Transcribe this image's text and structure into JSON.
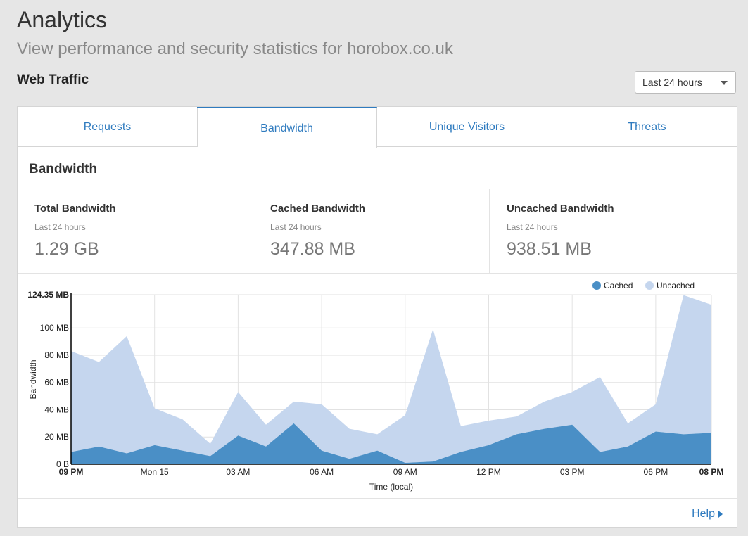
{
  "header": {
    "title": "Analytics",
    "subtitle": "View performance and security statistics for horobox.co.uk",
    "section": "Web Traffic"
  },
  "range_select": {
    "value": "Last 24 hours"
  },
  "tabs": [
    {
      "label": "Requests",
      "active": false
    },
    {
      "label": "Bandwidth",
      "active": true
    },
    {
      "label": "Unique Visitors",
      "active": false
    },
    {
      "label": "Threats",
      "active": false
    }
  ],
  "panel": {
    "title": "Bandwidth"
  },
  "stats": [
    {
      "label": "Total Bandwidth",
      "sub": "Last 24 hours",
      "value": "1.29 GB"
    },
    {
      "label": "Cached Bandwidth",
      "sub": "Last 24 hours",
      "value": "347.88 MB"
    },
    {
      "label": "Uncached Bandwidth",
      "sub": "Last 24 hours",
      "value": "938.51 MB"
    }
  ],
  "help_label": "Help",
  "colors": {
    "accent": "#2f7bbf",
    "cached": "#4a8fc6",
    "uncached": "#c5d6ee"
  },
  "chart_data": {
    "type": "area",
    "stacked": true,
    "xlabel": "Time (local)",
    "ylabel": "Bandwidth",
    "ylim": [
      0,
      124.35
    ],
    "y_ticks": [
      {
        "v": 0,
        "label": "0 B"
      },
      {
        "v": 20,
        "label": "20 MB"
      },
      {
        "v": 40,
        "label": "40 MB"
      },
      {
        "v": 60,
        "label": "60 MB"
      },
      {
        "v": 80,
        "label": "80 MB"
      },
      {
        "v": 100,
        "label": "100 MB"
      },
      {
        "v": 124.35,
        "label": "124.35 MB",
        "bold": true
      }
    ],
    "x_ticks": [
      {
        "i": 0,
        "label": "09 PM",
        "bold": true
      },
      {
        "i": 3,
        "label": "Mon 15"
      },
      {
        "i": 6,
        "label": "03 AM"
      },
      {
        "i": 9,
        "label": "06 AM"
      },
      {
        "i": 12,
        "label": "09 AM"
      },
      {
        "i": 15,
        "label": "12 PM"
      },
      {
        "i": 18,
        "label": "03 PM"
      },
      {
        "i": 21,
        "label": "06 PM"
      },
      {
        "i": 23,
        "label": "08 PM",
        "bold": true
      }
    ],
    "legend": {
      "position": "top-right"
    },
    "series": [
      {
        "name": "Cached",
        "color": "#4a8fc6",
        "values": [
          9,
          13,
          8,
          14,
          10,
          6,
          21,
          13,
          30,
          10,
          4,
          10,
          1,
          2,
          9,
          14,
          22,
          26,
          29,
          9,
          13,
          24,
          22,
          23
        ]
      },
      {
        "name": "Uncached",
        "color": "#c5d6ee",
        "values": [
          74,
          62,
          86,
          27,
          23,
          9,
          32,
          16,
          16,
          34,
          22,
          12,
          35,
          97,
          19,
          18,
          13,
          20,
          24,
          55,
          17,
          20,
          102,
          94
        ]
      }
    ]
  }
}
